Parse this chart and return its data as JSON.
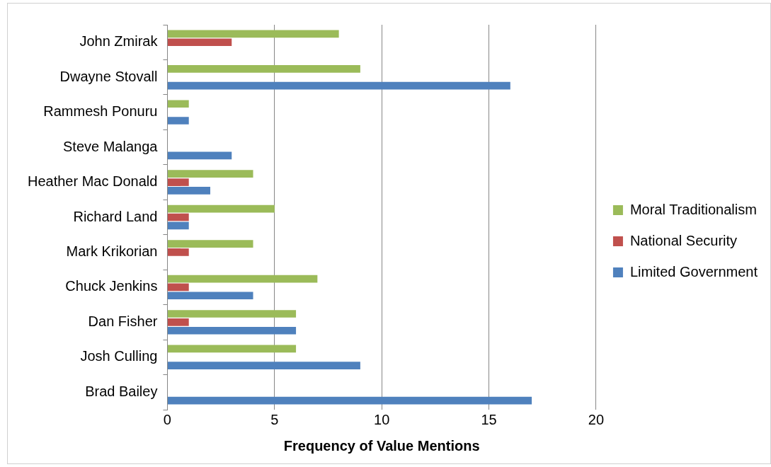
{
  "chart_data": {
    "type": "bar",
    "orientation": "horizontal",
    "xlabel": "Frequency of Value Mentions",
    "categories": [
      "John Zmirak",
      "Dwayne Stovall",
      "Rammesh Ponuru",
      "Steve Malanga",
      "Heather Mac Donald",
      "Richard Land",
      "Mark Krikorian",
      "Chuck Jenkins",
      "Dan Fisher",
      "Josh Culling",
      "Brad Bailey"
    ],
    "series": [
      {
        "name": "Moral Traditionalism",
        "color": "#9bbb59",
        "values": [
          8,
          9,
          1,
          0,
          4,
          5,
          4,
          7,
          6,
          6,
          0
        ]
      },
      {
        "name": "National Security",
        "color": "#c0504d",
        "values": [
          3,
          0,
          0,
          0,
          1,
          1,
          1,
          1,
          1,
          0,
          0
        ]
      },
      {
        "name": "Limited Government",
        "color": "#4f81bd",
        "values": [
          0,
          16,
          1,
          3,
          2,
          1,
          0,
          4,
          6,
          9,
          17
        ]
      }
    ],
    "xlim": [
      0,
      20
    ],
    "xticks": [
      0,
      5,
      10,
      15,
      20
    ],
    "grid": "x",
    "legend": "right"
  }
}
